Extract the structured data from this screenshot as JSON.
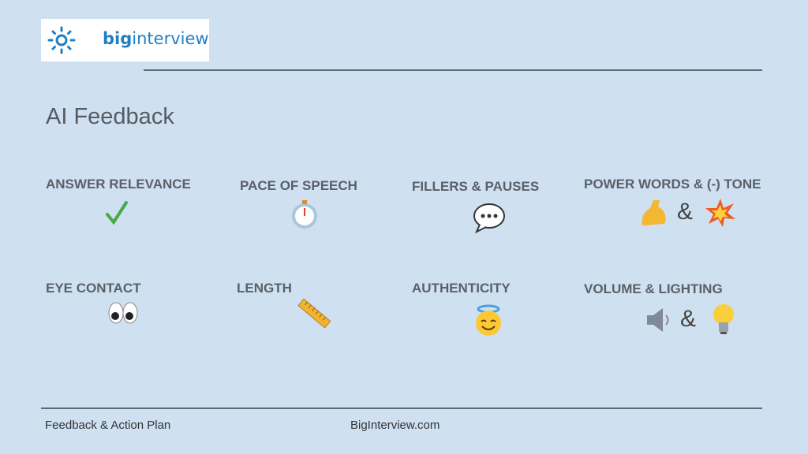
{
  "logo": {
    "bold": "big",
    "rest": "interview"
  },
  "title": "AI Feedback",
  "items": [
    {
      "label": "ANSWER RELEVANCE"
    },
    {
      "label": "PACE OF SPEECH"
    },
    {
      "label": "FILLERS & PAUSES"
    },
    {
      "label": "POWER WORDS & (-) TONE",
      "joiner": "&"
    },
    {
      "label": "EYE CONTACT"
    },
    {
      "label": "LENGTH"
    },
    {
      "label": "AUTHENTICITY"
    },
    {
      "label": "VOLUME & LIGHTING",
      "joiner": "&"
    }
  ],
  "footer": {
    "left": "Feedback & Action Plan",
    "center": "BigInterview.com"
  }
}
